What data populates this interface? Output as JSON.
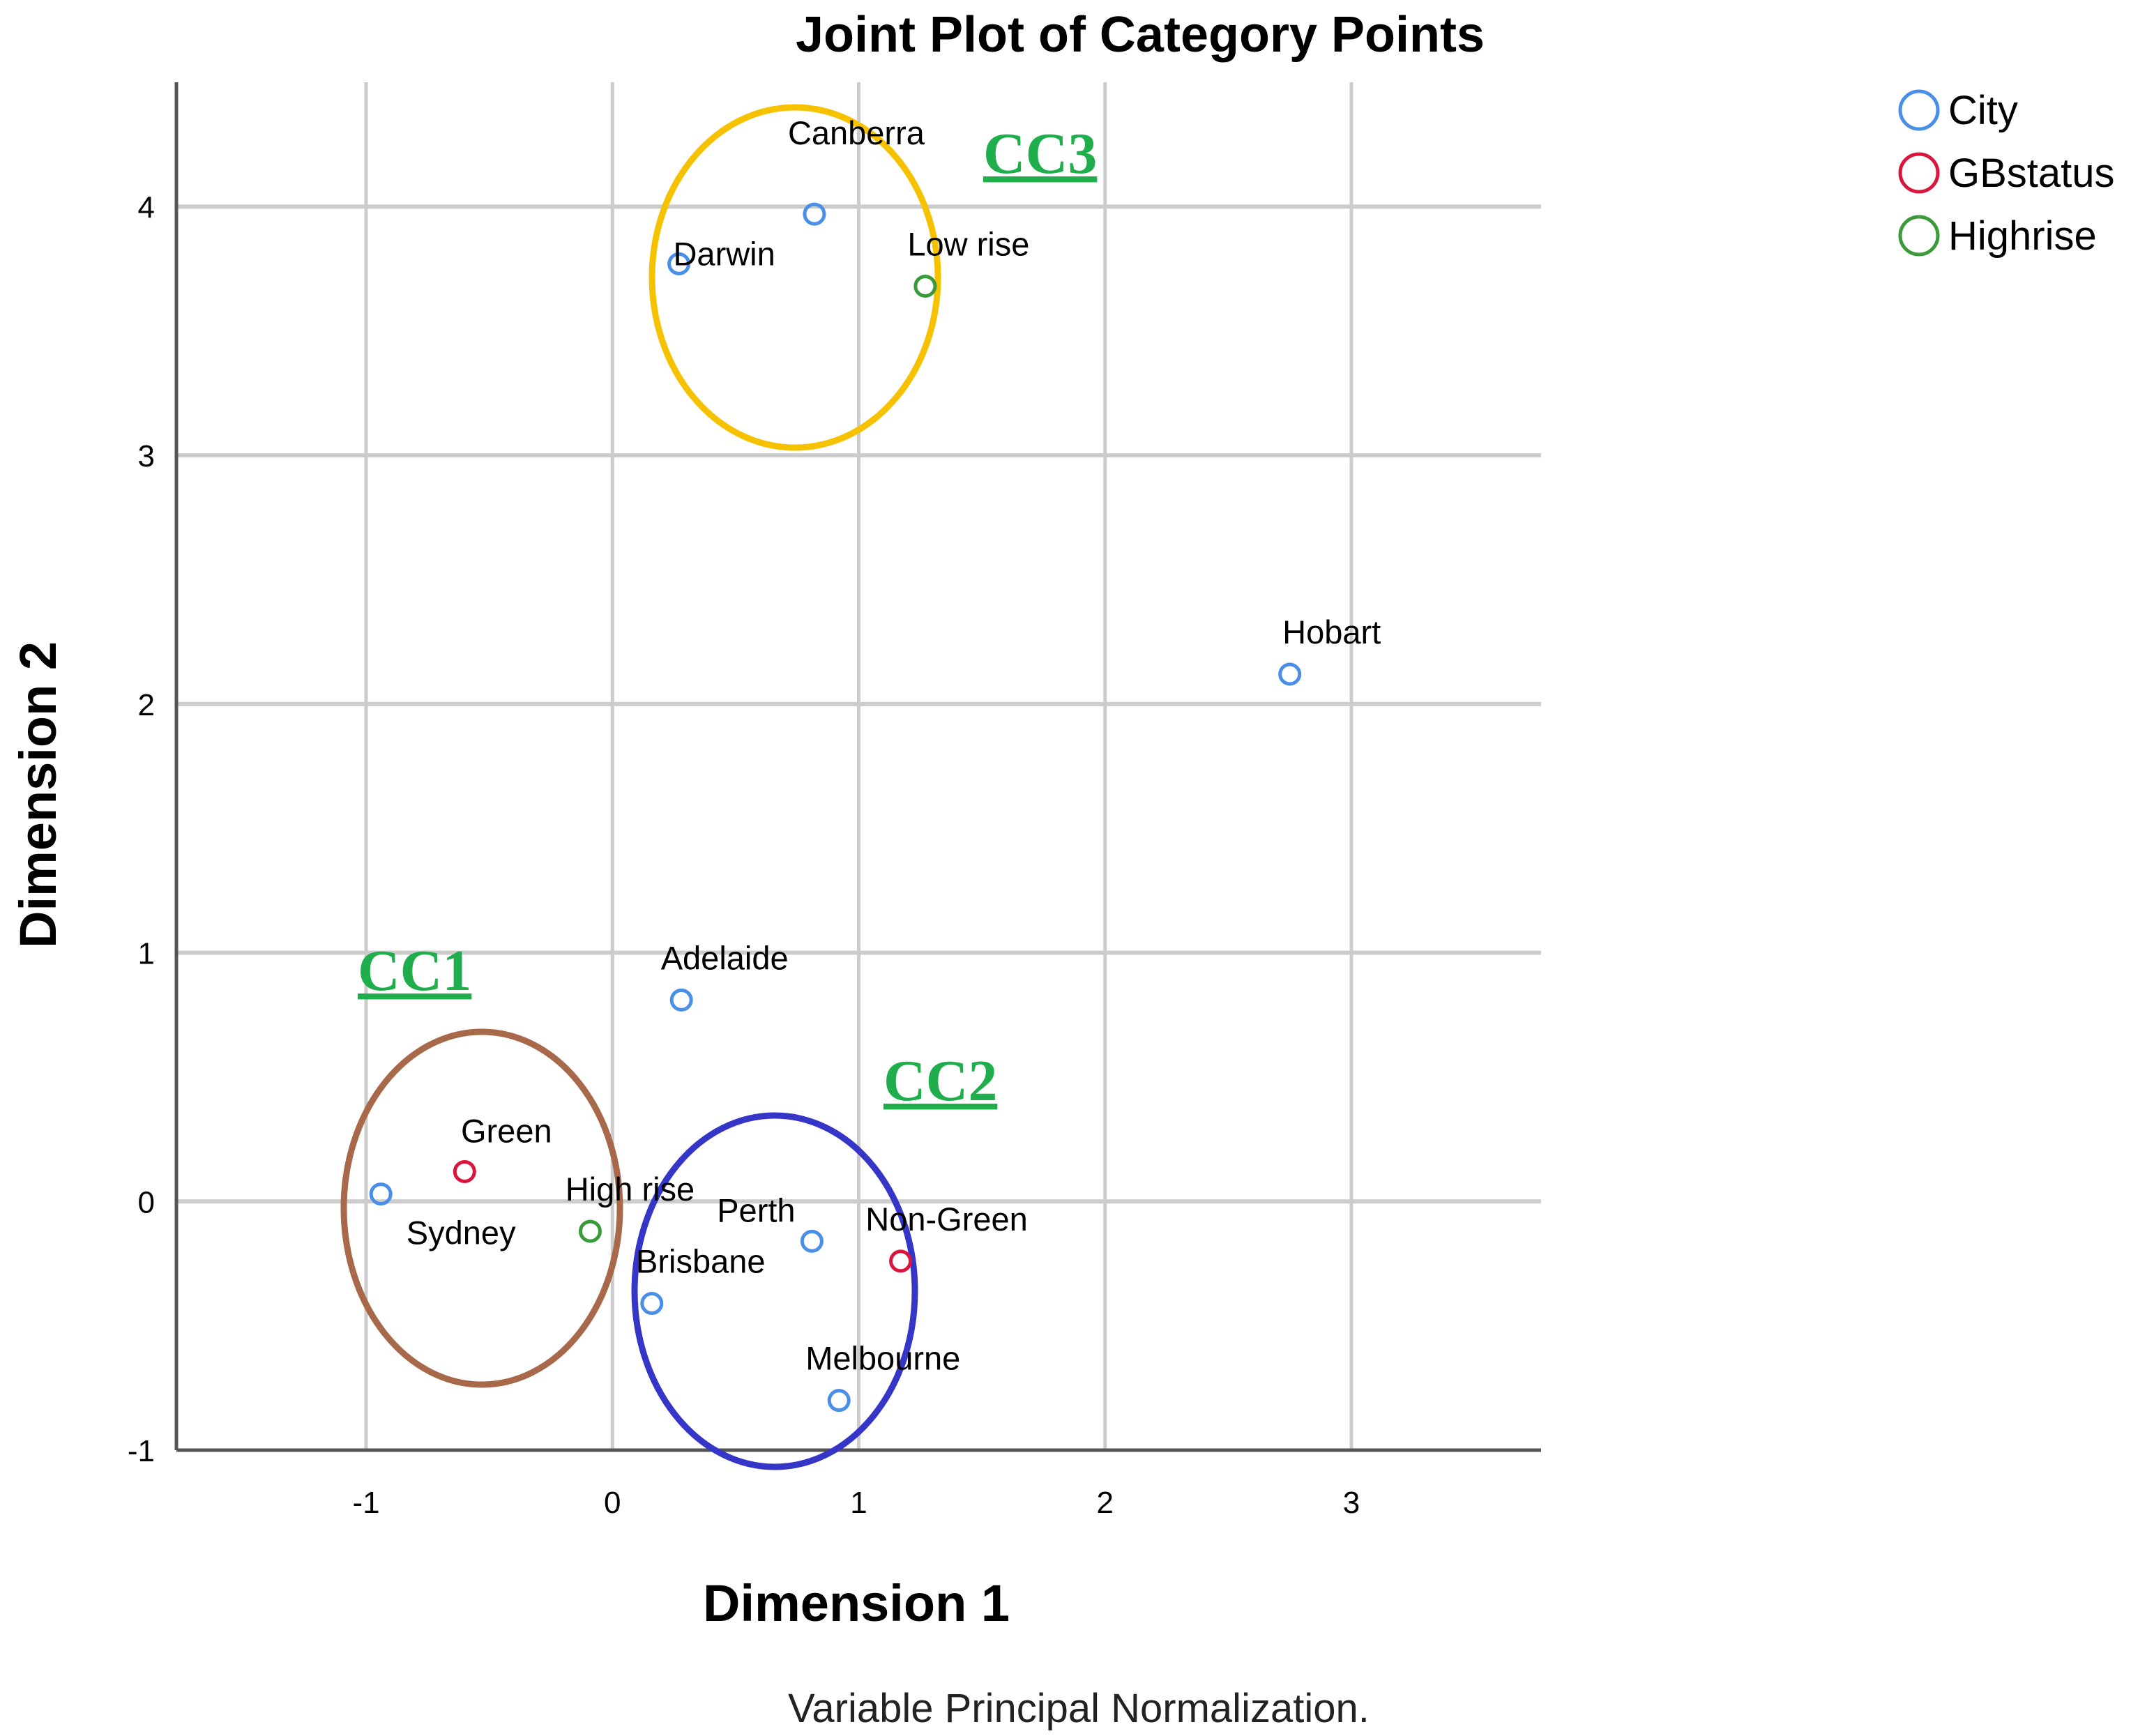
{
  "chart_data": {
    "type": "scatter",
    "title": "Joint Plot of Category Points",
    "xlabel": "Dimension 1",
    "ylabel": "Dimension 2",
    "xlim": [
      -1.77,
      3.77
    ],
    "ylim": [
      -1.0,
      4.5
    ],
    "x_ticks": [
      -1,
      0,
      1,
      2,
      3
    ],
    "y_ticks": [
      -1,
      0,
      1,
      2,
      3,
      4
    ],
    "grid": true,
    "legend_position": "top-right",
    "note": "Variable Principal Normalization.",
    "series": [
      {
        "name": "City",
        "color": "#4a8fe7",
        "points": [
          {
            "label": "Canberra",
            "x": 0.82,
            "y": 3.97
          },
          {
            "label": "Darwin",
            "x": 0.27,
            "y": 3.77
          },
          {
            "label": "Hobart",
            "x": 2.75,
            "y": 2.12
          },
          {
            "label": "Adelaide",
            "x": 0.28,
            "y": 0.81
          },
          {
            "label": "Sydney",
            "x": -0.94,
            "y": 0.03
          },
          {
            "label": "Perth",
            "x": 0.81,
            "y": -0.16
          },
          {
            "label": "Brisbane",
            "x": 0.16,
            "y": -0.41
          },
          {
            "label": "Melbourne",
            "x": 0.92,
            "y": -0.8
          }
        ]
      },
      {
        "name": "GBstatus",
        "color": "#d9163d",
        "points": [
          {
            "label": "Green",
            "x": -0.6,
            "y": 0.12
          },
          {
            "label": "Non-Green",
            "x": 1.17,
            "y": -0.24
          }
        ]
      },
      {
        "name": "Highrise",
        "color": "#3a9a3a",
        "points": [
          {
            "label": "Low rise",
            "x": 1.27,
            "y": 3.68
          },
          {
            "label": "High rise",
            "x": -0.09,
            "y": -0.12
          }
        ]
      }
    ],
    "annotations": [
      {
        "text": "CC1",
        "color": "#1fae4b",
        "circle_color": "#a8694a"
      },
      {
        "text": "CC2",
        "color": "#1fae4b",
        "circle_color": "#3535c8"
      },
      {
        "text": "CC3",
        "color": "#1fae4b",
        "circle_color": "#f6c200"
      }
    ]
  }
}
